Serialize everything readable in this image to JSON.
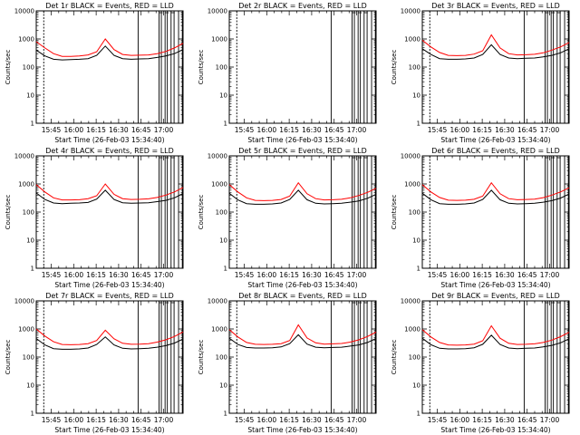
{
  "chart_data": [
    {
      "type": "line",
      "title": "Det 1r BLACK = Events, RED = LLD",
      "ylabel": "Counts/sec",
      "xlabel": "Start Time (26-Feb-03 15:34:40)",
      "yscale": "log",
      "ylim": [
        1,
        10000
      ],
      "ytick_labels": [
        "1",
        "10",
        "100",
        "1000",
        "10000"
      ],
      "xtick_labels": [
        "15:45",
        "16:00",
        "16:15",
        "16:30",
        "16:45",
        "17:00"
      ],
      "series": [
        {
          "color": "#ff0000",
          "values": [
            800,
            480,
            300,
            240,
            240,
            250,
            270,
            350,
            1000,
            420,
            280,
            260,
            265,
            270,
            300,
            360,
            480,
            700
          ]
        },
        {
          "color": "#000000",
          "values": [
            400,
            250,
            190,
            180,
            185,
            190,
            200,
            260,
            560,
            260,
            200,
            190,
            195,
            200,
            220,
            250,
            300,
            420
          ]
        }
      ],
      "vlines_min": [
        -5,
        58,
        72,
        73.5,
        76,
        77.5,
        80,
        82,
        85,
        87.5
      ]
    },
    {
      "type": "line",
      "title": "Det 2r BLACK = Events, RED = LLD",
      "ylabel": "Counts/sec",
      "xlabel": "Start Time (26-Feb-03 15:34:40)",
      "yscale": "log",
      "ylim": [
        1,
        10000
      ],
      "ytick_labels": [
        "1",
        "10",
        "100",
        "1000",
        "10000"
      ],
      "xtick_labels": [
        "15:45",
        "16:00",
        "16:15",
        "16:30",
        "16:45",
        "17:00"
      ],
      "series": [],
      "vlines_min": [
        -5,
        58,
        72,
        73.5,
        76,
        77.5,
        80,
        82,
        85,
        87.5
      ]
    },
    {
      "type": "line",
      "title": "Det 3r BLACK = Events, RED = LLD",
      "ylabel": "Counts/sec",
      "xlabel": "Start Time (26-Feb-03 15:34:40)",
      "yscale": "log",
      "ylim": [
        1,
        10000
      ],
      "ytick_labels": [
        "1",
        "10",
        "100",
        "1000",
        "10000"
      ],
      "xtick_labels": [
        "15:45",
        "16:00",
        "16:15",
        "16:30",
        "16:45",
        "17:00"
      ],
      "series": [
        {
          "color": "#ff0000",
          "values": [
            900,
            520,
            330,
            260,
            255,
            260,
            290,
            380,
            1400,
            480,
            300,
            270,
            275,
            285,
            320,
            400,
            520,
            750
          ]
        },
        {
          "color": "#000000",
          "values": [
            450,
            280,
            200,
            190,
            190,
            195,
            210,
            280,
            620,
            280,
            210,
            200,
            205,
            210,
            230,
            260,
            320,
            450
          ]
        }
      ],
      "vlines_min": [
        -5,
        58,
        72,
        73.5,
        76,
        77.5,
        80,
        82,
        85,
        87.5
      ]
    },
    {
      "type": "line",
      "title": "Det 4r BLACK = Events, RED = LLD",
      "ylabel": "Counts/sec",
      "xlabel": "Start Time (26-Feb-03 15:34:40)",
      "yscale": "log",
      "ylim": [
        1,
        10000
      ],
      "ytick_labels": [
        "1",
        "10",
        "100",
        "1000",
        "10000"
      ],
      "xtick_labels": [
        "15:45",
        "16:00",
        "16:15",
        "16:30",
        "16:45",
        "17:00"
      ],
      "series": [
        {
          "color": "#ff0000",
          "values": [
            950,
            520,
            320,
            270,
            270,
            275,
            300,
            380,
            1000,
            430,
            300,
            280,
            285,
            295,
            330,
            400,
            520,
            750
          ]
        },
        {
          "color": "#000000",
          "values": [
            480,
            280,
            210,
            200,
            205,
            210,
            220,
            290,
            600,
            280,
            215,
            205,
            210,
            215,
            235,
            260,
            320,
            460
          ]
        }
      ],
      "vlines_min": [
        -5,
        58,
        72,
        73.5,
        76,
        77.5,
        80,
        82,
        85,
        87.5
      ]
    },
    {
      "type": "line",
      "title": "Det 5r BLACK = Events, RED = LLD",
      "ylabel": "Counts/sec",
      "xlabel": "Start Time (26-Feb-03 15:34:40)",
      "yscale": "log",
      "ylim": [
        1,
        10000
      ],
      "ytick_labels": [
        "1",
        "10",
        "100",
        "1000",
        "10000"
      ],
      "xtick_labels": [
        "15:45",
        "16:00",
        "16:15",
        "16:30",
        "16:45",
        "17:00"
      ],
      "series": [
        {
          "color": "#ff0000",
          "values": [
            950,
            520,
            320,
            260,
            255,
            260,
            280,
            370,
            1100,
            450,
            300,
            270,
            275,
            285,
            320,
            390,
            500,
            700
          ]
        },
        {
          "color": "#000000",
          "values": [
            470,
            270,
            200,
            190,
            190,
            195,
            210,
            280,
            600,
            275,
            205,
            195,
            200,
            205,
            225,
            250,
            310,
            430
          ]
        }
      ],
      "vlines_min": [
        -5,
        58,
        72,
        73.5,
        76,
        77.5,
        80,
        82,
        85,
        87.5
      ]
    },
    {
      "type": "line",
      "title": "Det 6r BLACK = Events, RED = LLD",
      "ylabel": "Counts/sec",
      "xlabel": "Start Time (26-Feb-03 15:34:40)",
      "yscale": "log",
      "ylim": [
        1,
        10000
      ],
      "ytick_labels": [
        "1",
        "10",
        "100",
        "1000",
        "10000"
      ],
      "xtick_labels": [
        "15:45",
        "16:00",
        "16:15",
        "16:30",
        "16:45",
        "17:00"
      ],
      "series": [
        {
          "color": "#ff0000",
          "values": [
            950,
            520,
            330,
            265,
            260,
            265,
            285,
            370,
            1100,
            450,
            300,
            275,
            280,
            290,
            325,
            400,
            520,
            730
          ]
        },
        {
          "color": "#000000",
          "values": [
            470,
            275,
            200,
            190,
            190,
            195,
            210,
            280,
            600,
            275,
            205,
            195,
            200,
            205,
            225,
            255,
            315,
            440
          ]
        }
      ],
      "vlines_min": [
        -5,
        58,
        72,
        73.5,
        76,
        77.5,
        80,
        82,
        85,
        87.5
      ]
    },
    {
      "type": "line",
      "title": "Det 7r BLACK = Events, RED = LLD",
      "ylabel": "Counts/sec",
      "xlabel": "Start Time (26-Feb-03 15:34:40)",
      "yscale": "log",
      "ylim": [
        1,
        10000
      ],
      "ytick_labels": [
        "1",
        "10",
        "100",
        "1000",
        "10000"
      ],
      "xtick_labels": [
        "15:45",
        "16:00",
        "16:15",
        "16:30",
        "16:45",
        "17:00"
      ],
      "series": [
        {
          "color": "#ff0000",
          "values": [
            1000,
            560,
            350,
            280,
            275,
            280,
            300,
            390,
            900,
            450,
            310,
            285,
            290,
            300,
            340,
            410,
            540,
            780
          ]
        },
        {
          "color": "#000000",
          "values": [
            460,
            270,
            200,
            190,
            190,
            195,
            210,
            280,
            520,
            270,
            205,
            195,
            200,
            205,
            225,
            255,
            315,
            440
          ]
        }
      ],
      "vlines_min": [
        -5,
        58,
        72,
        73.5,
        76,
        77.5,
        80,
        82,
        85,
        87.5
      ]
    },
    {
      "type": "line",
      "title": "Det 8r BLACK = Events, RED = LLD",
      "ylabel": "Counts/sec",
      "xlabel": "Start Time (26-Feb-03 15:34:40)",
      "yscale": "log",
      "ylim": [
        1,
        10000
      ],
      "ytick_labels": [
        "1",
        "10",
        "100",
        "1000",
        "10000"
      ],
      "xtick_labels": [
        "15:45",
        "16:00",
        "16:15",
        "16:30",
        "16:45",
        "17:00"
      ],
      "series": [
        {
          "color": "#ff0000",
          "values": [
            950,
            520,
            330,
            285,
            280,
            285,
            300,
            390,
            1400,
            480,
            320,
            290,
            295,
            305,
            340,
            410,
            540,
            770
          ]
        },
        {
          "color": "#000000",
          "values": [
            470,
            280,
            220,
            210,
            210,
            215,
            230,
            300,
            620,
            290,
            225,
            215,
            220,
            225,
            245,
            270,
            330,
            460
          ]
        }
      ],
      "vlines_min": [
        -5,
        58,
        72,
        73.5,
        76,
        77.5,
        80,
        82,
        85,
        87.5
      ]
    },
    {
      "type": "line",
      "title": "Det 9r BLACK = Events, RED = LLD",
      "ylabel": "Counts/sec",
      "xlabel": "Start Time (26-Feb-03 15:34:40)",
      "yscale": "log",
      "ylim": [
        1,
        10000
      ],
      "ytick_labels": [
        "1",
        "10",
        "100",
        "1000",
        "10000"
      ],
      "xtick_labels": [
        "15:45",
        "16:00",
        "16:15",
        "16:30",
        "16:45",
        "17:00"
      ],
      "series": [
        {
          "color": "#ff0000",
          "values": [
            950,
            520,
            330,
            270,
            265,
            270,
            290,
            380,
            1300,
            470,
            310,
            280,
            285,
            295,
            330,
            400,
            530,
            760
          ]
        },
        {
          "color": "#000000",
          "values": [
            470,
            275,
            205,
            195,
            195,
            200,
            215,
            285,
            600,
            280,
            210,
            200,
            205,
            210,
            230,
            260,
            320,
            450
          ]
        }
      ],
      "vlines_min": [
        -5,
        58,
        72,
        73.5,
        76,
        77.5,
        80,
        82,
        85,
        87.5
      ]
    }
  ]
}
